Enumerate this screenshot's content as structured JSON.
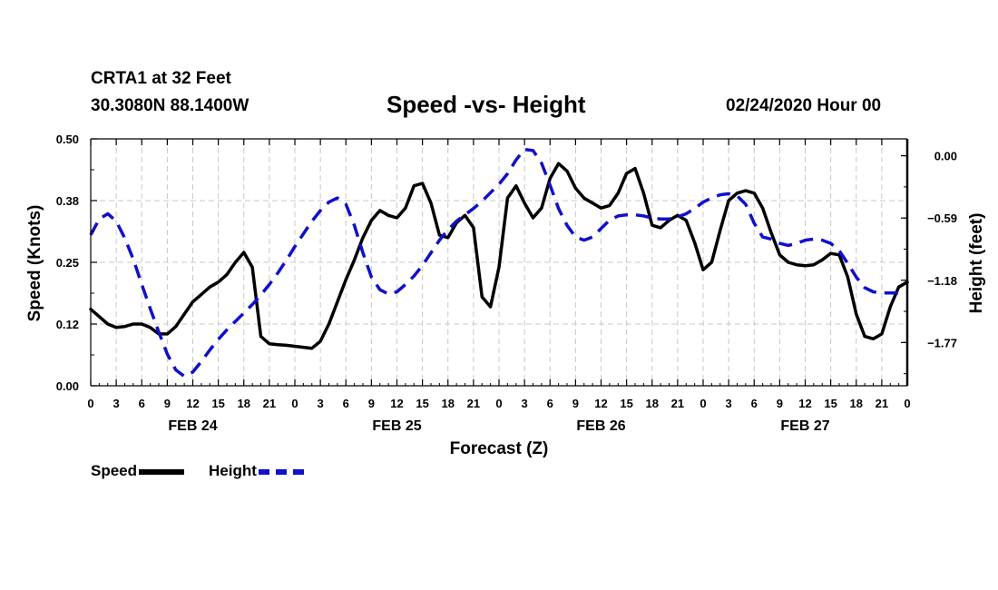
{
  "header": {
    "station": "CRTA1 at 32 Feet",
    "coords": "30.3080N 88.1400W",
    "title": "Speed -vs- Height",
    "datestamp": "02/24/2020 Hour 00"
  },
  "chart_data": {
    "type": "line",
    "title": "Speed -vs- Height",
    "xlabel": "Forecast (Z)",
    "ylabel": "Speed (Knots)",
    "y2label": "Height (feet)",
    "x_range": [
      0,
      96
    ],
    "x_tick_step_hours": 3,
    "x_tick_labels": [
      "0",
      "3",
      "6",
      "9",
      "12",
      "15",
      "18",
      "21",
      "0",
      "3",
      "6",
      "9",
      "12",
      "15",
      "18",
      "21",
      "0",
      "3",
      "6",
      "9",
      "12",
      "15",
      "18",
      "21",
      "0",
      "3",
      "6",
      "9",
      "12",
      "15",
      "18",
      "21",
      "0"
    ],
    "day_labels": [
      {
        "label": "FEB 24",
        "hour": 12
      },
      {
        "label": "FEB 25",
        "hour": 36
      },
      {
        "label": "FEB 26",
        "hour": 60
      },
      {
        "label": "FEB 27",
        "hour": 84
      }
    ],
    "ylim": [
      0.0,
      0.5
    ],
    "y_ticks": [
      0.0,
      0.125,
      0.25,
      0.375,
      0.5
    ],
    "y_tick_labels": [
      "0.00",
      "0.12",
      "0.25",
      "0.38",
      "0.50"
    ],
    "y2lim": [
      -2.18,
      0.16
    ],
    "y2_ticks": [
      0.0,
      -0.59,
      -1.18,
      -1.77
    ],
    "y2_tick_labels": [
      "0.00",
      "-0.59",
      "-1.18",
      "-1.77"
    ],
    "grid": true,
    "legend_placement": "bottom-left",
    "series": [
      {
        "name": "Speed",
        "axis": "left",
        "color": "#000000",
        "style": "solid",
        "x": [
          0,
          1,
          2,
          3,
          4,
          5,
          6,
          7,
          8,
          9,
          10,
          11,
          12,
          13,
          14,
          15,
          16,
          17,
          18,
          19,
          20,
          21,
          22,
          23,
          24,
          25,
          26,
          27,
          28,
          29,
          30,
          31,
          32,
          33,
          34,
          35,
          36,
          37,
          38,
          39,
          40,
          41,
          42,
          43,
          44,
          45,
          46,
          47,
          48,
          49,
          50,
          51,
          52,
          53,
          54,
          55,
          56,
          57,
          58,
          59,
          60,
          61,
          62,
          63,
          64,
          65,
          66,
          67,
          68,
          69,
          70,
          71,
          72,
          73,
          74,
          75,
          76,
          77,
          78,
          79,
          80,
          81,
          82,
          83,
          84,
          85,
          86,
          87,
          88,
          89,
          90,
          91,
          92,
          93,
          94,
          95,
          96
        ],
        "values": [
          0.155,
          0.14,
          0.125,
          0.118,
          0.12,
          0.125,
          0.125,
          0.118,
          0.105,
          0.105,
          0.12,
          0.145,
          0.17,
          0.185,
          0.2,
          0.21,
          0.225,
          0.25,
          0.27,
          0.24,
          0.1,
          0.085,
          0.083,
          0.082,
          0.08,
          0.078,
          0.076,
          0.09,
          0.125,
          0.17,
          0.215,
          0.255,
          0.3,
          0.335,
          0.355,
          0.345,
          0.34,
          0.36,
          0.405,
          0.41,
          0.37,
          0.305,
          0.3,
          0.33,
          0.345,
          0.32,
          0.18,
          0.16,
          0.24,
          0.38,
          0.405,
          0.37,
          0.34,
          0.36,
          0.42,
          0.45,
          0.435,
          0.4,
          0.38,
          0.37,
          0.36,
          0.365,
          0.39,
          0.43,
          0.44,
          0.39,
          0.325,
          0.32,
          0.335,
          0.345,
          0.335,
          0.29,
          0.235,
          0.25,
          0.315,
          0.375,
          0.39,
          0.395,
          0.39,
          0.36,
          0.31,
          0.265,
          0.25,
          0.245,
          0.243,
          0.245,
          0.255,
          0.268,
          0.265,
          0.22,
          0.145,
          0.1,
          0.095,
          0.105,
          0.16,
          0.2,
          0.21
        ]
      },
      {
        "name": "Height",
        "axis": "right",
        "color": "#1010cc",
        "style": "dashed",
        "x": [
          0,
          1,
          2,
          3,
          4,
          5,
          6,
          7,
          8,
          9,
          10,
          11,
          12,
          13,
          14,
          15,
          16,
          17,
          18,
          19,
          20,
          21,
          22,
          23,
          24,
          25,
          26,
          27,
          28,
          29,
          30,
          31,
          32,
          33,
          34,
          35,
          36,
          37,
          38,
          39,
          40,
          41,
          42,
          43,
          44,
          45,
          46,
          47,
          48,
          49,
          50,
          51,
          52,
          53,
          54,
          55,
          56,
          57,
          58,
          59,
          60,
          61,
          62,
          63,
          64,
          65,
          66,
          67,
          68,
          69,
          70,
          71,
          72,
          73,
          74,
          75,
          76,
          77,
          78,
          79,
          80,
          81,
          82,
          83,
          84,
          85,
          86,
          87,
          88,
          89,
          90,
          91,
          92,
          93,
          94,
          95,
          96
        ],
        "values": [
          -0.75,
          -0.6,
          -0.55,
          -0.62,
          -0.78,
          -0.98,
          -1.22,
          -1.45,
          -1.67,
          -1.88,
          -2.03,
          -2.09,
          -2.05,
          -1.95,
          -1.84,
          -1.74,
          -1.65,
          -1.57,
          -1.49,
          -1.41,
          -1.32,
          -1.22,
          -1.11,
          -0.99,
          -0.86,
          -0.74,
          -0.62,
          -0.52,
          -0.44,
          -0.4,
          -0.46,
          -0.66,
          -0.92,
          -1.15,
          -1.27,
          -1.31,
          -1.29,
          -1.22,
          -1.14,
          -1.04,
          -0.92,
          -0.8,
          -0.7,
          -0.62,
          -0.56,
          -0.5,
          -0.43,
          -0.35,
          -0.27,
          -0.17,
          -0.04,
          0.06,
          0.05,
          -0.07,
          -0.28,
          -0.5,
          -0.66,
          -0.77,
          -0.8,
          -0.77,
          -0.69,
          -0.61,
          -0.57,
          -0.56,
          -0.56,
          -0.57,
          -0.59,
          -0.6,
          -0.6,
          -0.58,
          -0.55,
          -0.5,
          -0.44,
          -0.4,
          -0.37,
          -0.36,
          -0.38,
          -0.46,
          -0.64,
          -0.77,
          -0.79,
          -0.83,
          -0.85,
          -0.83,
          -0.8,
          -0.79,
          -0.8,
          -0.83,
          -0.9,
          -1.02,
          -1.15,
          -1.25,
          -1.29,
          -1.3,
          -1.3,
          -1.3,
          -1.3
        ]
      }
    ]
  },
  "legend": {
    "speed_label": "Speed",
    "height_label": "Height"
  }
}
